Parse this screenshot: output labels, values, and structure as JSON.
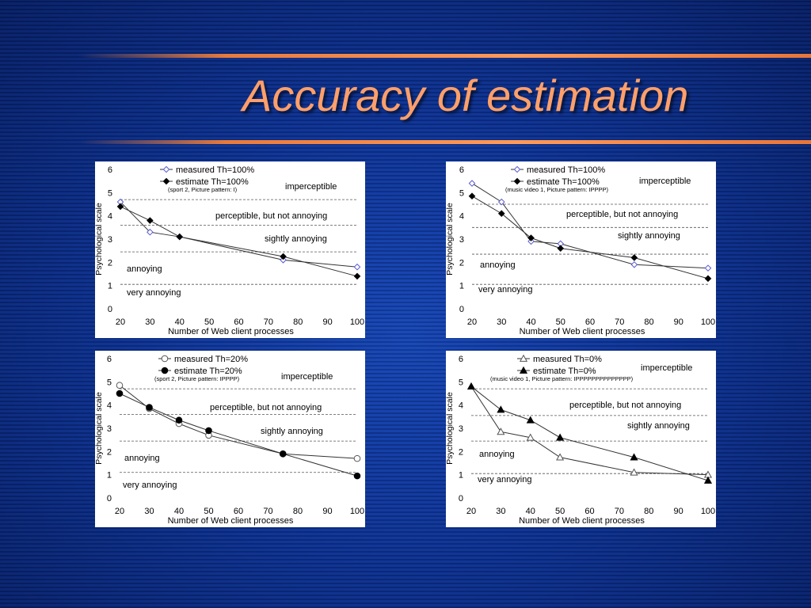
{
  "slide": {
    "title": "Accuracy of estimation"
  },
  "chart_data": [
    {
      "type": "line",
      "x": [
        20,
        30,
        40,
        75,
        100
      ],
      "series": [
        {
          "name": "measured Th=100%",
          "values": [
            4.6,
            3.3,
            3.1,
            2.1,
            1.8
          ],
          "marker": "diamond-open"
        },
        {
          "name": "estimate Th=100%",
          "values": [
            4.4,
            3.8,
            3.1,
            2.25,
            1.4
          ],
          "marker": "diamond-filled"
        }
      ],
      "note": "(sport 2, Picture pattern: I)",
      "ylabel": "Psychological  scale",
      "xlabel": "Number of Web client processes",
      "xticks": [
        20,
        30,
        40,
        50,
        60,
        70,
        80,
        90,
        100
      ],
      "yticks": [
        0,
        1,
        2,
        3,
        4,
        5,
        6
      ],
      "xlim": [
        20,
        100
      ],
      "ylim": [
        0,
        6
      ],
      "thresholds": [
        4.7,
        3.6,
        2.45,
        1.05
      ],
      "zones": [
        "imperceptible",
        "perceptible, but not annoying",
        "sightly annoying",
        "annoying",
        "very annoying"
      ]
    },
    {
      "type": "line",
      "x": [
        20,
        30,
        40,
        50,
        75,
        100
      ],
      "series": [
        {
          "name": "measured Th=100%",
          "values": [
            5.4,
            4.6,
            2.9,
            2.8,
            1.9,
            1.75
          ],
          "marker": "diamond-open"
        },
        {
          "name": "estimate Th=100%",
          "values": [
            4.85,
            4.1,
            3.05,
            2.6,
            2.2,
            1.3
          ],
          "marker": "diamond-filled"
        }
      ],
      "note": "(music video 1, Picture pattern: IPPPP)",
      "ylabel": "Psychological  scale",
      "xlabel": "Number of Web client processes",
      "xticks": [
        20,
        30,
        40,
        50,
        60,
        70,
        80,
        90,
        100
      ],
      "yticks": [
        0,
        1,
        2,
        3,
        4,
        5,
        6
      ],
      "xlim": [
        20,
        100
      ],
      "ylim": [
        0,
        6
      ],
      "thresholds": [
        4.5,
        3.5,
        2.35,
        1.05
      ],
      "zones": [
        "imperceptible",
        "perceptible, but not annoying",
        "sightly annoying",
        "annoying",
        "very annoying"
      ]
    },
    {
      "type": "line",
      "x": [
        20,
        30,
        40,
        50,
        75,
        100
      ],
      "series": [
        {
          "name": "measured Th=20%",
          "values": [
            4.85,
            3.85,
            3.2,
            2.7,
            1.9,
            1.7
          ],
          "marker": "circle-open"
        },
        {
          "name": "estimate Th=20%",
          "values": [
            4.5,
            3.9,
            3.35,
            2.9,
            1.9,
            0.95
          ],
          "marker": "circle-filled"
        }
      ],
      "note": "(sport 2, Picture pattern: IPPPP)",
      "ylabel": "Psychological  scale",
      "xlabel": "Number of Web client processes",
      "xticks": [
        20,
        30,
        40,
        50,
        60,
        70,
        80,
        90,
        100
      ],
      "yticks": [
        0,
        1,
        2,
        3,
        4,
        5,
        6
      ],
      "xlim": [
        20,
        100
      ],
      "ylim": [
        0,
        6
      ],
      "thresholds": [
        4.7,
        3.6,
        2.45,
        1.1
      ],
      "zones": [
        "imperceptible",
        "perceptible, but not annoying",
        "sightly annoying",
        "annoying",
        "very annoying"
      ]
    },
    {
      "type": "line",
      "x": [
        20,
        30,
        40,
        50,
        75,
        100
      ],
      "series": [
        {
          "name": "measured Th=0%",
          "values": [
            4.8,
            2.85,
            2.6,
            1.75,
            1.1,
            1.0
          ],
          "marker": "triangle-open"
        },
        {
          "name": "estimate Th=0%",
          "values": [
            4.8,
            3.8,
            3.35,
            2.6,
            1.75,
            0.75
          ],
          "marker": "triangle-filled"
        }
      ],
      "note": "(music video 1, Picture pattern: IPPPPPPPPPPPPPP)",
      "ylabel": "Psychological  scale",
      "xlabel": "Number of Web client processes",
      "xticks": [
        20,
        30,
        40,
        50,
        60,
        70,
        80,
        90,
        100
      ],
      "yticks": [
        0,
        1,
        2,
        3,
        4,
        5,
        6
      ],
      "xlim": [
        20,
        100
      ],
      "ylim": [
        0,
        6
      ],
      "thresholds": [
        4.7,
        3.55,
        2.45,
        1.05
      ],
      "zones": [
        "imperceptible",
        "perceptible, but not annoying",
        "sightly annoying",
        "annoying",
        "very annoying"
      ]
    }
  ]
}
